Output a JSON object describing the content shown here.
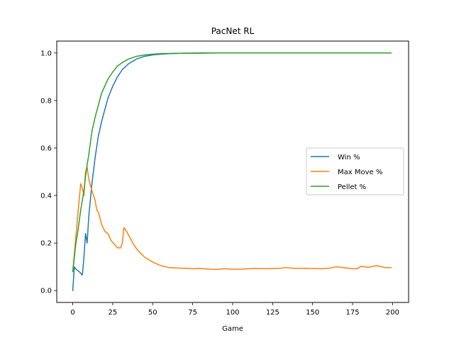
{
  "chart_data": {
    "type": "line",
    "title": "PacNet RL",
    "xlabel": "Game",
    "ylabel": "",
    "xlim": [
      -10,
      210
    ],
    "ylim": [
      -0.05,
      1.05
    ],
    "xticks": [
      0,
      25,
      50,
      75,
      100,
      125,
      150,
      175,
      200
    ],
    "xtick_labels": [
      "0",
      "25",
      "50",
      "75",
      "100",
      "125",
      "150",
      "175",
      "200"
    ],
    "yticks": [
      0.0,
      0.2,
      0.4,
      0.6,
      0.8,
      1.0
    ],
    "ytick_labels": [
      "0.0",
      "0.2",
      "0.4",
      "0.6",
      "0.8",
      "1.0"
    ],
    "grid": false,
    "legend_position": "center-right",
    "series": [
      {
        "name": "Win %",
        "color": "#1f77b4",
        "x": [
          0,
          1,
          2,
          4,
          6,
          7,
          8,
          9,
          10,
          12,
          14,
          16,
          18,
          20,
          22,
          25,
          28,
          31,
          35,
          40,
          45,
          50,
          55,
          60,
          70,
          80,
          90,
          100,
          120,
          140,
          160,
          180,
          199
        ],
        "y": [
          0.0,
          0.1,
          0.09,
          0.08,
          0.065,
          0.14,
          0.24,
          0.2,
          0.31,
          0.45,
          0.56,
          0.65,
          0.71,
          0.76,
          0.81,
          0.86,
          0.9,
          0.93,
          0.955,
          0.975,
          0.986,
          0.992,
          0.995,
          0.997,
          0.999,
          0.999,
          1.0,
          1.0,
          1.0,
          1.0,
          1.0,
          1.0,
          1.0
        ]
      },
      {
        "name": "Max Move %",
        "color": "#ff7f0e",
        "x": [
          0,
          2,
          4,
          5,
          6,
          7,
          8,
          9,
          10,
          12,
          14,
          15,
          16,
          18,
          20,
          22,
          24,
          26,
          28,
          30,
          31,
          32,
          34,
          36,
          38,
          40,
          42,
          45,
          50,
          55,
          60,
          65,
          70,
          75,
          80,
          85,
          90,
          95,
          100,
          105,
          110,
          115,
          120,
          125,
          130,
          133,
          136,
          140,
          145,
          150,
          155,
          160,
          165,
          170,
          175,
          178,
          180,
          185,
          190,
          195,
          199
        ],
        "y": [
          0.08,
          0.23,
          0.38,
          0.45,
          0.43,
          0.4,
          0.5,
          0.52,
          0.47,
          0.42,
          0.38,
          0.34,
          0.33,
          0.28,
          0.25,
          0.24,
          0.21,
          0.195,
          0.18,
          0.18,
          0.2,
          0.265,
          0.245,
          0.22,
          0.195,
          0.175,
          0.16,
          0.14,
          0.12,
          0.105,
          0.097,
          0.095,
          0.094,
          0.092,
          0.093,
          0.09,
          0.089,
          0.092,
          0.09,
          0.09,
          0.092,
          0.093,
          0.092,
          0.093,
          0.094,
          0.097,
          0.095,
          0.093,
          0.094,
          0.093,
          0.092,
          0.094,
          0.1,
          0.096,
          0.092,
          0.092,
          0.102,
          0.098,
          0.105,
          0.097,
          0.097
        ]
      },
      {
        "name": "Pellet %",
        "color": "#2ca02c",
        "x": [
          0,
          1,
          2,
          3,
          4,
          5,
          6,
          7,
          8,
          9,
          10,
          11,
          12,
          14,
          16,
          18,
          20,
          22,
          25,
          28,
          31,
          35,
          40,
          45,
          50,
          55,
          60,
          70,
          80,
          90,
          100,
          120,
          140,
          160,
          180,
          199
        ],
        "y": [
          0.08,
          0.14,
          0.2,
          0.24,
          0.29,
          0.34,
          0.38,
          0.42,
          0.48,
          0.53,
          0.57,
          0.62,
          0.67,
          0.73,
          0.78,
          0.83,
          0.86,
          0.89,
          0.92,
          0.945,
          0.96,
          0.975,
          0.986,
          0.992,
          0.995,
          0.997,
          0.998,
          0.999,
          1.0,
          1.0,
          1.0,
          1.0,
          1.0,
          1.0,
          1.0,
          1.0
        ]
      }
    ]
  }
}
